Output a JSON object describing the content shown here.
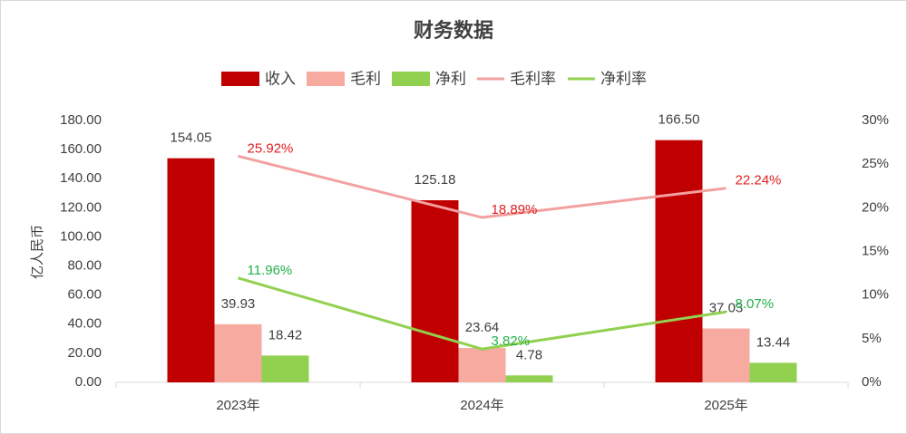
{
  "chart_data": {
    "type": "bar",
    "title": "财务数据",
    "y_label": "亿人民币",
    "categories": [
      "2023年",
      "2024年",
      "2025年"
    ],
    "series": [
      {
        "name": "收入",
        "type": "bar",
        "color": "#c00000",
        "values": [
          154.05,
          125.18,
          166.5
        ],
        "value_labels": [
          "154.05",
          "125.18",
          "166.50"
        ]
      },
      {
        "name": "毛利",
        "type": "bar",
        "color": "#f7aaa0",
        "values": [
          39.93,
          23.64,
          37.03
        ],
        "value_labels": [
          "39.93",
          "23.64",
          "37.03"
        ]
      },
      {
        "name": "净利",
        "type": "bar",
        "color": "#92d050",
        "values": [
          18.42,
          4.78,
          13.44
        ],
        "value_labels": [
          "18.42",
          "4.78",
          "13.44"
        ]
      },
      {
        "name": "毛利率",
        "type": "line",
        "axis": "y2",
        "color": "#f2a0a0",
        "label_color": "#e02020",
        "values": [
          25.92,
          18.89,
          22.24
        ],
        "value_labels": [
          "25.92%",
          "18.89%",
          "22.24%"
        ]
      },
      {
        "name": "净利率",
        "type": "line",
        "axis": "y2",
        "color": "#92d050",
        "label_color": "#22b04a",
        "values": [
          11.96,
          3.82,
          8.07
        ],
        "value_labels": [
          "11.96%",
          "3.82%",
          "8.07%"
        ]
      }
    ],
    "ylim": [
      0,
      180
    ],
    "yticks": [
      {
        "value": 0,
        "label": "0.00"
      },
      {
        "value": 20,
        "label": "20.00"
      },
      {
        "value": 40,
        "label": "40.00"
      },
      {
        "value": 60,
        "label": "60.00"
      },
      {
        "value": 80,
        "label": "80.00"
      },
      {
        "value": 100,
        "label": "100.00"
      },
      {
        "value": 120,
        "label": "120.00"
      },
      {
        "value": 140,
        "label": "140.00"
      },
      {
        "value": 160,
        "label": "160.00"
      },
      {
        "value": 180,
        "label": "180.00"
      }
    ],
    "y2lim": [
      0,
      30
    ],
    "y2ticks": [
      {
        "value": 0,
        "label": "0%"
      },
      {
        "value": 5,
        "label": "5%"
      },
      {
        "value": 10,
        "label": "10%"
      },
      {
        "value": 15,
        "label": "15%"
      },
      {
        "value": 20,
        "label": "20%"
      },
      {
        "value": 25,
        "label": "25%"
      },
      {
        "value": 30,
        "label": "30%"
      }
    ],
    "grid": false,
    "legend": "top"
  }
}
